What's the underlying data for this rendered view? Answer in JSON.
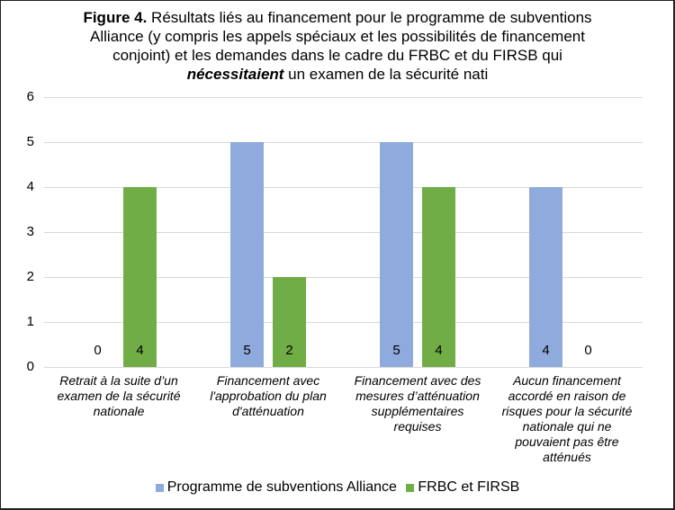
{
  "chart_data": {
    "type": "bar",
    "title_prefix": "Figure 4.",
    "title_line1": " Résultats liés au financement pour le programme de subventions",
    "title_line2": "Alliance (y compris les appels spéciaux et les possibilités de financement",
    "title_line3": "conjoint) et les demandes dans le cadre du FRBC et du FIRSB qui",
    "title_line4_emph": "nécessitaient",
    "title_line4_rest": " un examen de la sécurité nati",
    "categories": [
      "Retrait à la suite d’un examen de la sécurité nationale",
      "Financement avec l'approbation du plan d'atténuation",
      "Financement avec des mesures d’atténuation supplémentaires requises",
      "Aucun financement accordé en raison de risques pour la sécurité nationale qui ne pouvaient pas être atténués"
    ],
    "series": [
      {
        "name": "Programme de subventions Alliance",
        "color": "#8faadc",
        "values": [
          0,
          5,
          5,
          4
        ]
      },
      {
        "name": "FRBC et FIRSB",
        "color": "#70ad47",
        "values": [
          4,
          2,
          4,
          0
        ]
      }
    ],
    "yticks": [
      "0",
      "1",
      "2",
      "3",
      "4",
      "5",
      "6"
    ],
    "ylim": [
      0,
      6
    ],
    "xlabel": "",
    "ylabel": "",
    "grid": true,
    "legend_position": "bottom",
    "data_labels": true
  }
}
